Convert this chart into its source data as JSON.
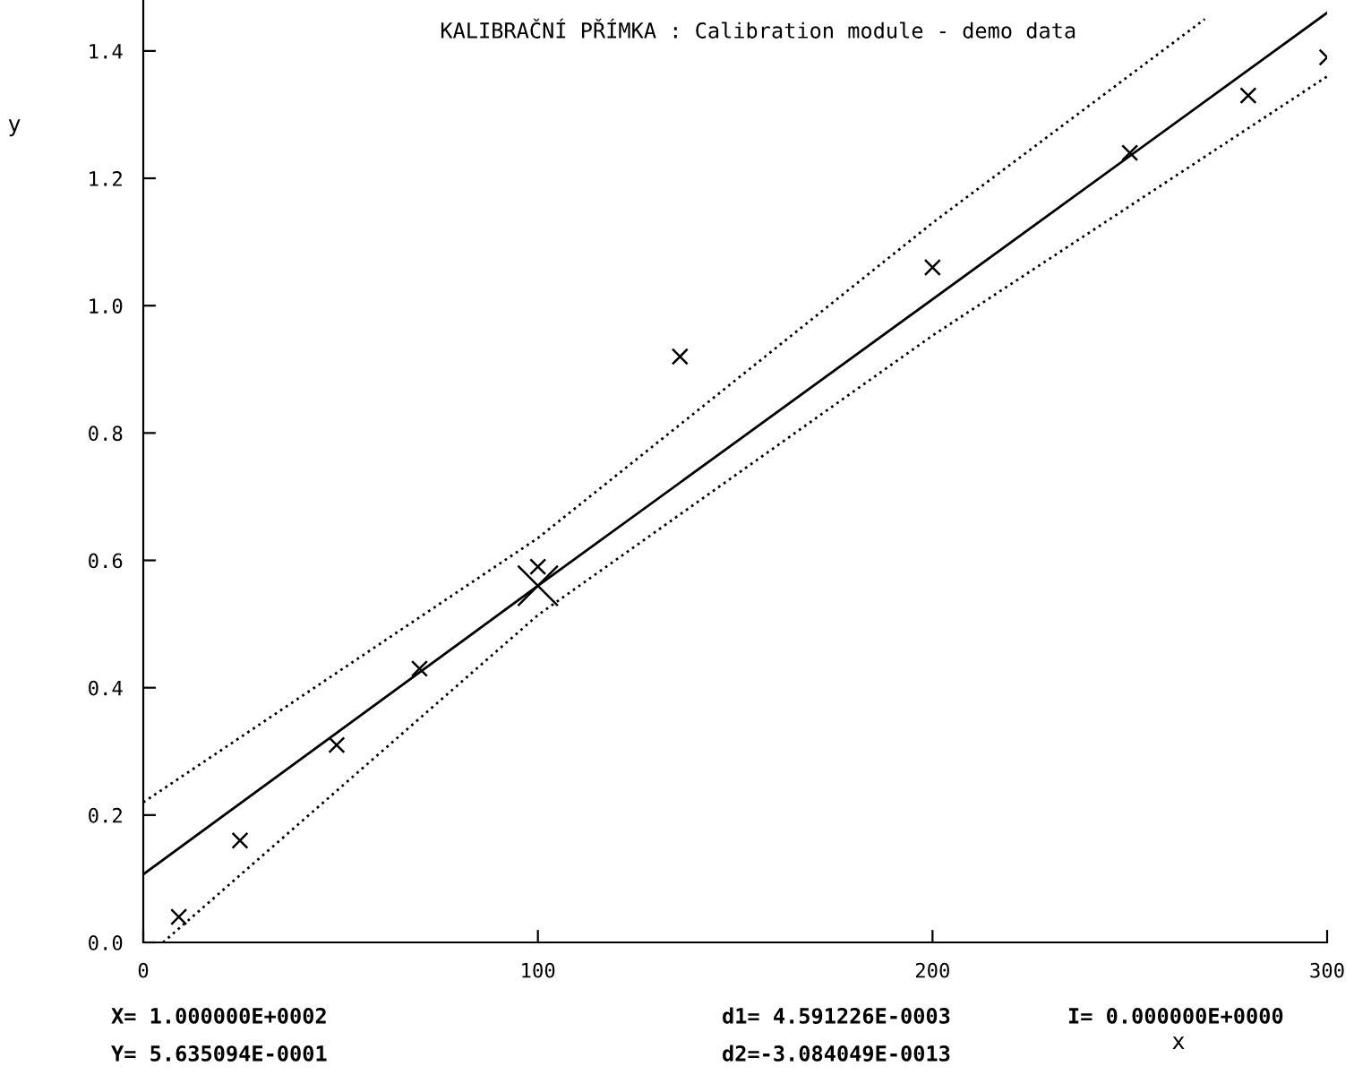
{
  "chart_data": {
    "type": "scatter",
    "title": "KALIBRAČNÍ PŘÍMKA : Calibration module - demo data",
    "xlabel": "x",
    "ylabel": "y",
    "xlim": [
      0,
      300
    ],
    "ylim": [
      0,
      1.48
    ],
    "xticks": [
      0,
      100,
      200,
      300
    ],
    "yticks": [
      {
        "value": 0,
        "label": "0.0"
      },
      {
        "value": 0.2,
        "label": "0.2"
      },
      {
        "value": 0.4,
        "label": "0.4"
      },
      {
        "value": 0.6,
        "label": "0.6"
      },
      {
        "value": 0.8,
        "label": "0.8"
      },
      {
        "value": 1.0,
        "label": "1.0"
      },
      {
        "value": 1.2,
        "label": "1.2"
      },
      {
        "value": 1.4,
        "label": "1.4"
      }
    ],
    "grid": false,
    "legend": false,
    "series": [
      {
        "marker": "cross",
        "color": "#000000",
        "x": [
          9,
          24.5,
          49,
          70,
          100,
          136,
          200,
          250,
          280,
          300
        ],
        "values": [
          0.04,
          0.16,
          0.31,
          0.43,
          0.59,
          0.92,
          1.06,
          1.24,
          1.33,
          1.39
        ]
      },
      {
        "type": "line",
        "line_style": "solid",
        "color": "#000000",
        "x": [
          0,
          100,
          300
        ],
        "values": [
          0.107,
          0.56,
          1.46
        ]
      },
      {
        "type": "line",
        "line_style": "dotted",
        "color": "#000000",
        "x": [
          0,
          100,
          200,
          269
        ],
        "values": [
          0.22,
          0.635,
          1.13,
          1.45
        ]
      },
      {
        "type": "line",
        "line_style": "dotted",
        "color": "#000000",
        "x": [
          5,
          100,
          200,
          300
        ],
        "values": [
          0.0,
          0.514,
          0.953,
          1.36
        ]
      },
      {
        "marker": "cross",
        "color": "#000000",
        "x": [
          100
        ],
        "values": [
          0.56
        ]
      }
    ],
    "annotations": [
      "X= 1.000000E+0002",
      "Y= 5.635094E-0001",
      "d1= 4.591226E-0003",
      "d2=-3.084049E-0013",
      "I= 0.000000E+0000"
    ]
  }
}
